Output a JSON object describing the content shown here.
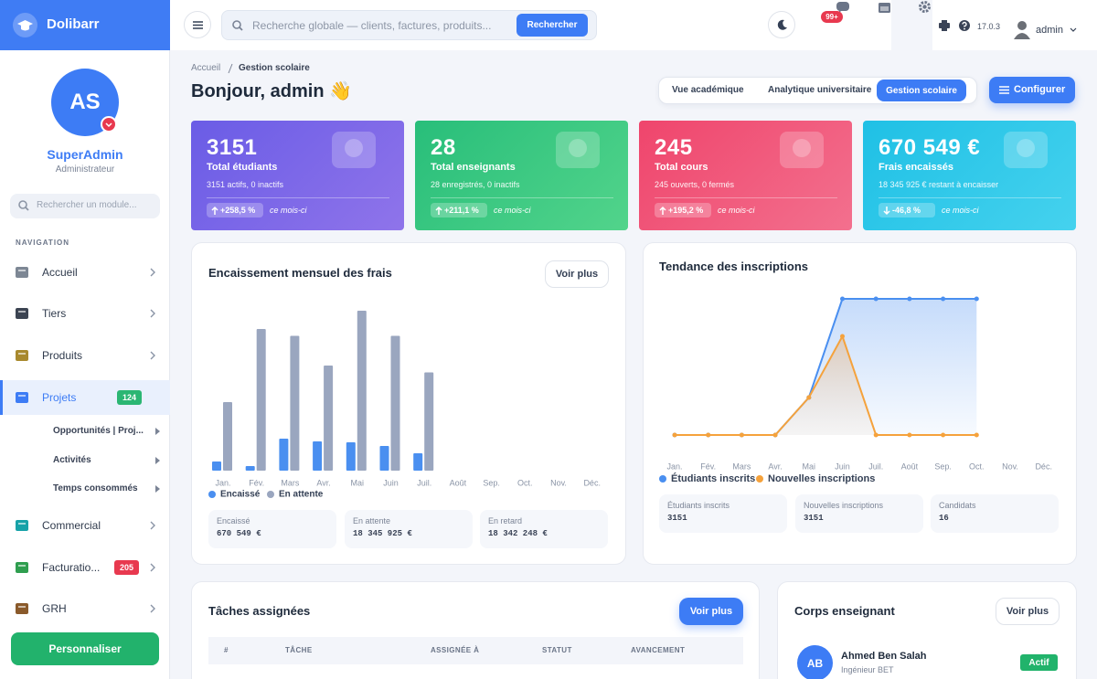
{
  "brand": "Dolibarr",
  "topbar": {
    "search_placeholder": "Recherche globale — clients, factures, produits...",
    "search_button": "Rechercher",
    "notifications": "99+",
    "version": "17.0.3",
    "user": "admin"
  },
  "sidebar": {
    "initials": "AS",
    "name": "SuperAdmin",
    "role": "Administrateur",
    "search_placeholder": "Rechercher un module...",
    "section": "NAVIGATION",
    "items": [
      {
        "label": "Accueil"
      },
      {
        "label": "Tiers"
      },
      {
        "label": "Produits"
      },
      {
        "label": "Projets",
        "badge": 124,
        "active": true,
        "children": [
          "Opportunités | Proj...",
          "Activités",
          "Temps consommés"
        ]
      },
      {
        "label": "Commercial"
      },
      {
        "label": "Facturatio...",
        "badge": 205
      },
      {
        "label": "GRH"
      }
    ],
    "button": "Personnaliser"
  },
  "breadcrumb": [
    "Accueil",
    "Gestion scolaire"
  ],
  "greeting": "Bonjour, admin 👋",
  "tabs": {
    "items": [
      "Vue académique",
      "Analytique universitaire",
      "Gestion scolaire"
    ],
    "active": 2
  },
  "configure_button": "Configurer",
  "kpis": [
    {
      "value": 3151,
      "label": "Total étudiants",
      "detail": "3151 actifs, 0 inactifs",
      "change": "+258,5 %",
      "period": "ce mois-ci"
    },
    {
      "value": 28,
      "label": "Total enseignants",
      "detail": "28 enregistrés, 0 inactifs",
      "change": "+211,1 %",
      "period": "ce mois-ci"
    },
    {
      "value": 245,
      "label": "Total cours",
      "detail": "245 ouverts, 0 fermés",
      "change": "+195,2 %",
      "period": "ce mois-ci"
    },
    {
      "value": "670 549 €",
      "label": "Frais encaissés",
      "detail": "18 345 925 € restant à encaisser",
      "change": "-46,8 %",
      "period": "ce mois-ci"
    }
  ],
  "chart_data": [
    {
      "type": "bar",
      "title": "Encaissement mensuel des frais",
      "categories": [
        "Jan.",
        "Fév.",
        "Mars",
        "Avr.",
        "Mai",
        "Juin",
        "Juil.",
        "Août",
        "Sep.",
        "Oct.",
        "Nov.",
        "Déc."
      ],
      "series": [
        {
          "name": "Encaissé",
          "color": "#4a8ff0",
          "values": [
            200000,
            100000,
            700000,
            640000,
            620000,
            540000,
            380000,
            null,
            null,
            null,
            null,
            null
          ]
        },
        {
          "name": "En attente",
          "color": "#9aa6bf",
          "values": [
            1500000,
            3100000,
            2950000,
            2300000,
            3500000,
            2950000,
            2150000,
            null,
            null,
            null,
            null,
            null
          ]
        }
      ],
      "legend": "bottom-left"
    },
    {
      "type": "line",
      "title": "Tendance des inscriptions",
      "categories": [
        "Jan.",
        "Fév.",
        "Mars",
        "Avr.",
        "Mai",
        "Juin",
        "Juil.",
        "Août",
        "Sep.",
        "Oct.",
        "Nov.",
        "Déc."
      ],
      "series": [
        {
          "name": "Étudiants inscrits",
          "color": "#4a8ff0",
          "values": [
            0,
            0,
            0,
            0,
            867,
            3151,
            3151,
            3151,
            3151,
            3151,
            null,
            null
          ]
        },
        {
          "name": "Nouvelles inscriptions",
          "color": "#f5a23c",
          "values": [
            0,
            0,
            0,
            0,
            867,
            2284,
            0,
            0,
            0,
            0,
            null,
            null
          ]
        }
      ],
      "legend": "bottom-left"
    }
  ],
  "fees_panel": {
    "button": "Voir plus",
    "stats": [
      {
        "label": "Encaissé",
        "value": "670 549 €"
      },
      {
        "label": "En attente",
        "value": "18 345 925 €"
      },
      {
        "label": "En retard",
        "value": "18 342 248 €"
      }
    ]
  },
  "enrollment_panel": {
    "stats": [
      {
        "label": "Étudiants inscrits",
        "value": 3151
      },
      {
        "label": "Nouvelles inscriptions",
        "value": 3151
      },
      {
        "label": "Candidats",
        "value": 16
      }
    ]
  },
  "tasks": {
    "title": "Tâches assignées",
    "button": "Voir plus",
    "columns": [
      "#",
      "TÂCHE",
      "ASSIGNÉE À",
      "STATUT",
      "AVANCEMENT"
    ]
  },
  "teachers": {
    "title": "Corps enseignant",
    "button": "Voir plus",
    "items": [
      {
        "initials": "AB",
        "name": "Ahmed Ben Salah",
        "role": "Ingénieur BET",
        "status": "Actif"
      }
    ]
  }
}
